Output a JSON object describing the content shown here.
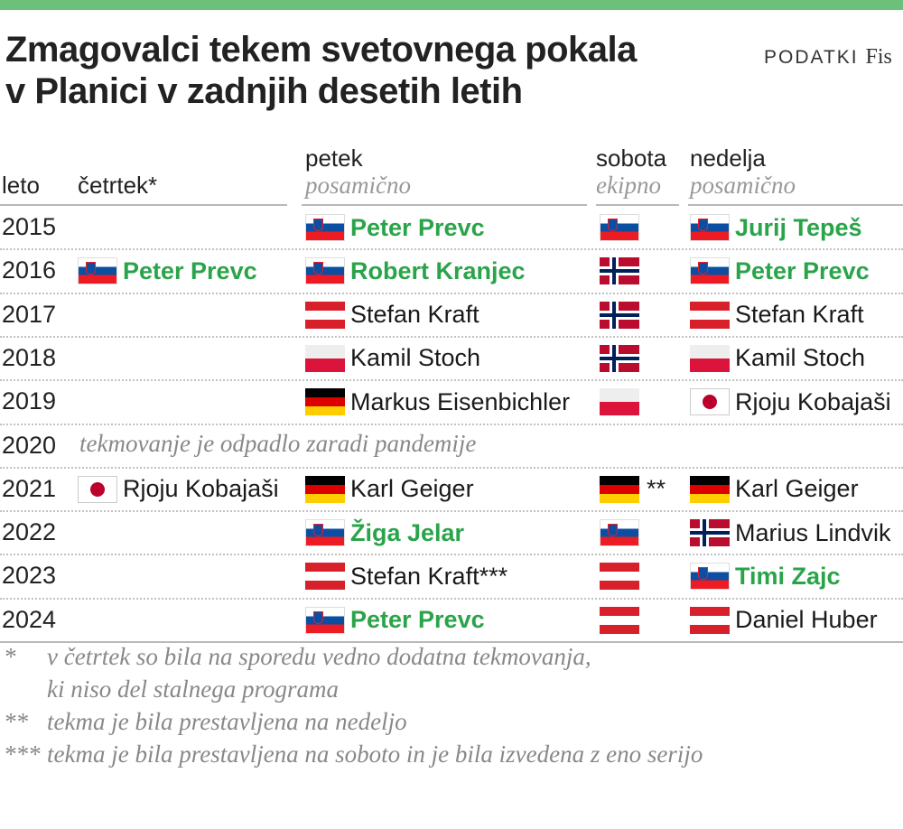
{
  "title_line1": "Zmagovalci tekem svetovnega pokala",
  "title_line2": "v Planici v zadnjih desetih letih",
  "source_label": "PODATKI",
  "source_name": "Fis",
  "headers": {
    "leto": "leto",
    "cetrtek": "četrtek*",
    "petek": "petek",
    "petek_sub": "posamično",
    "sobota": "sobota",
    "sobota_sub": "ekipno",
    "nedelja": "nedelja",
    "nedelja_sub": "posamično"
  },
  "rows": [
    {
      "year": "2015",
      "thu": null,
      "fri": {
        "flag": "svn",
        "name": "Peter Prevc",
        "slo": true
      },
      "sat": {
        "flag": "svn",
        "note": ""
      },
      "sun": {
        "flag": "svn",
        "name": "Jurij Tepeš",
        "slo": true
      }
    },
    {
      "year": "2016",
      "thu": {
        "flag": "svn",
        "name": "Peter Prevc",
        "slo": true
      },
      "fri": {
        "flag": "svn",
        "name": "Robert Kranjec",
        "slo": true
      },
      "sat": {
        "flag": "nor",
        "note": ""
      },
      "sun": {
        "flag": "svn",
        "name": "Peter Prevc",
        "slo": true
      }
    },
    {
      "year": "2017",
      "thu": null,
      "fri": {
        "flag": "aut",
        "name": "Stefan Kraft",
        "slo": false
      },
      "sat": {
        "flag": "nor",
        "note": ""
      },
      "sun": {
        "flag": "aut",
        "name": "Stefan Kraft",
        "slo": false
      }
    },
    {
      "year": "2018",
      "thu": null,
      "fri": {
        "flag": "pol",
        "name": "Kamil Stoch",
        "slo": false
      },
      "sat": {
        "flag": "nor",
        "note": ""
      },
      "sun": {
        "flag": "pol",
        "name": "Kamil Stoch",
        "slo": false
      }
    },
    {
      "year": "2019",
      "thu": null,
      "fri": {
        "flag": "ger",
        "name": "Markus Eisenbichler",
        "slo": false
      },
      "sat": {
        "flag": "pol",
        "note": ""
      },
      "sun": {
        "flag": "jpn",
        "name": "Rjoju Kobajaši",
        "slo": false
      }
    },
    {
      "year": "2020",
      "cancelled": "tekmovanje je odpadlo zaradi pandemije"
    },
    {
      "year": "2021",
      "thu": {
        "flag": "jpn",
        "name": "Rjoju Kobajaši",
        "slo": false
      },
      "fri": {
        "flag": "ger",
        "name": "Karl Geiger",
        "slo": false
      },
      "sat": {
        "flag": "ger",
        "note": "**"
      },
      "sun": {
        "flag": "ger",
        "name": "Karl Geiger",
        "slo": false
      }
    },
    {
      "year": "2022",
      "thu": null,
      "fri": {
        "flag": "svn",
        "name": "Žiga Jelar",
        "slo": true
      },
      "sat": {
        "flag": "svn",
        "note": ""
      },
      "sun": {
        "flag": "nor",
        "name": "Marius Lindvik",
        "slo": false
      }
    },
    {
      "year": "2023",
      "thu": null,
      "fri": {
        "flag": "aut",
        "name": "Stefan Kraft***",
        "slo": false
      },
      "sat": {
        "flag": "aut",
        "note": ""
      },
      "sun": {
        "flag": "svn",
        "name": "Timi Zajc",
        "slo": true
      }
    },
    {
      "year": "2024",
      "thu": null,
      "fri": {
        "flag": "svn",
        "name": "Peter Prevc",
        "slo": true
      },
      "sat": {
        "flag": "aut",
        "note": ""
      },
      "sun": {
        "flag": "aut",
        "name": "Daniel Huber",
        "slo": false
      }
    }
  ],
  "footnotes": [
    {
      "mark": "*",
      "lines": [
        "v četrtek so bila na sporedu vedno dodatna tekmovanja,",
        "ki niso del stalnega programa"
      ]
    },
    {
      "mark": "**",
      "lines": [
        "tekma je bila prestavljena na nedeljo"
      ]
    },
    {
      "mark": "***",
      "lines": [
        "tekma je bila prestavljena na soboto in je bila izvedena z eno serijo"
      ]
    }
  ],
  "flag_names": {
    "svn": "slovenia-flag-icon",
    "aut": "austria-flag-icon",
    "pol": "poland-flag-icon",
    "ger": "germany-flag-icon",
    "jpn": "japan-flag-icon",
    "nor": "norway-flag-icon"
  },
  "colors": {
    "accent_bar": "#6cc07a",
    "slovenian_winner": "#2aa44a",
    "muted": "#999999"
  }
}
